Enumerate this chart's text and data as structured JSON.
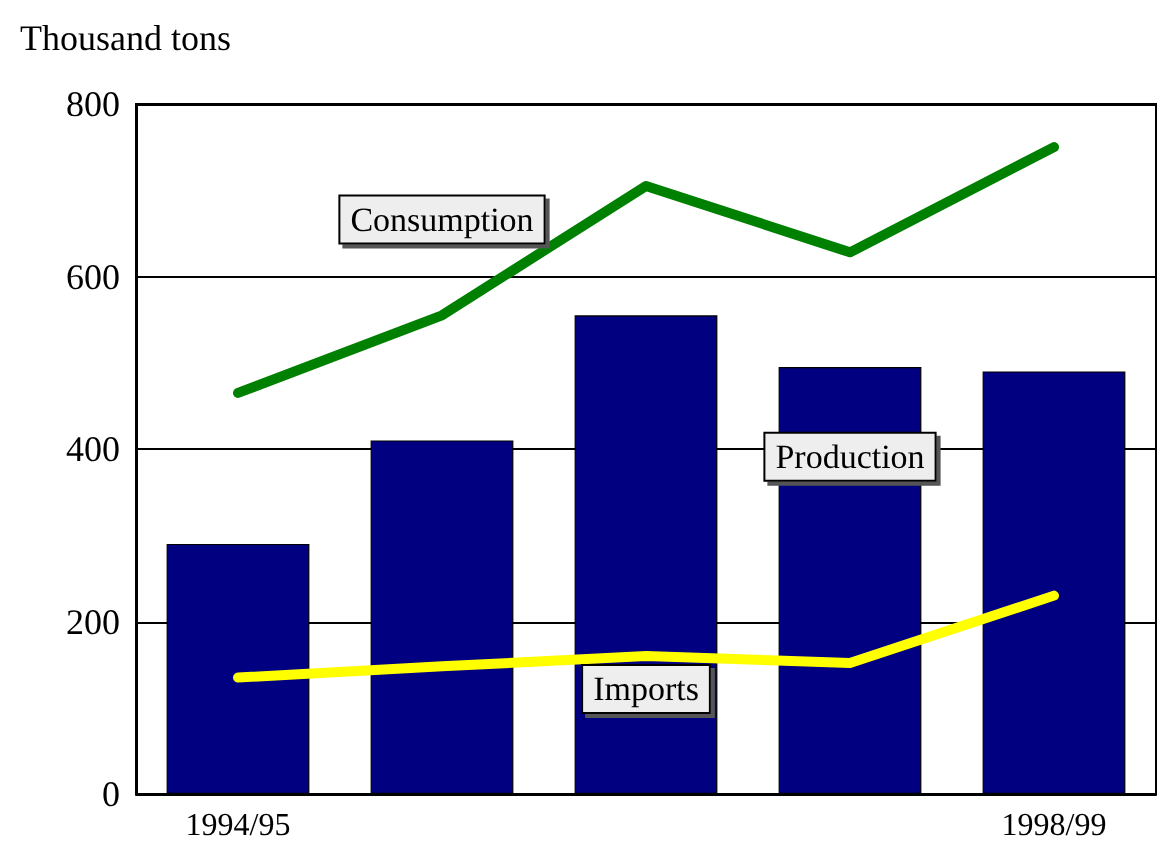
{
  "chart_data": {
    "type": "bar",
    "ylabel": "Thousand tons",
    "categories": [
      "1994/95",
      null,
      null,
      null,
      "1998/99"
    ],
    "series": [
      {
        "name": "Production",
        "color": "#000080",
        "values": [
          290,
          410,
          555,
          495,
          490
        ]
      },
      {
        "name": "Consumption",
        "type": "line",
        "color": "#008000",
        "values": [
          465,
          555,
          705,
          628,
          750
        ]
      },
      {
        "name": "Imports",
        "type": "line",
        "color": "#ffff00",
        "values": [
          135,
          148,
          160,
          152,
          230
        ]
      }
    ],
    "ylim": [
      0,
      800
    ],
    "yticks": [
      0,
      200,
      400,
      600,
      800
    ],
    "grid": "y",
    "legend": false,
    "marker": "none",
    "line_style": "solid"
  }
}
